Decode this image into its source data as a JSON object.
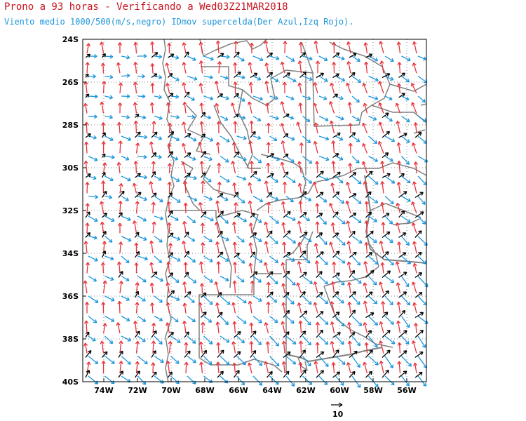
{
  "title_line1": "Prono a 93 horas - Verificando a Wed03Z21MAR2018",
  "title_line2": "Viento medio 1000/500(m/s,negro) IDmov supercelda(Der Azul,Izq Rojo).",
  "lat_labels": [
    "24S",
    "26S",
    "28S",
    "30S",
    "32S",
    "34S",
    "36S",
    "38S",
    "40S"
  ],
  "lon_labels": [
    "74W",
    "72W",
    "70W",
    "68W",
    "66W",
    "64W",
    "62W",
    "60W",
    "58W",
    "56W"
  ],
  "reference_vector_label": "10",
  "colors": {
    "mean_wind": "#000000",
    "right_mover": "#1e96dc",
    "left_mover": "#e8323c",
    "borders": "#808080",
    "title": "#c8141e"
  }
}
